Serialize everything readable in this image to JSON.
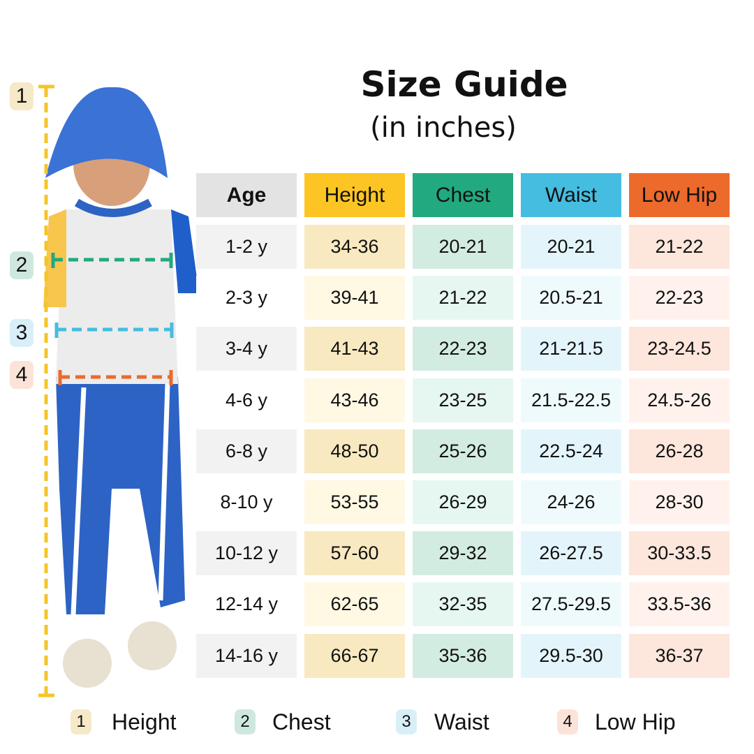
{
  "title": "Size Guide",
  "subtitle": "(in inches)",
  "colors": {
    "age": "#e3e3e3",
    "height": "#fcc523",
    "chest": "#22a97f",
    "waist": "#45bde0",
    "low_hip": "#ec6a2c"
  },
  "table": {
    "headers": [
      "Age",
      "Height",
      "Chest",
      "Waist",
      "Low Hip"
    ],
    "rows": [
      [
        "1-2 y",
        "34-36",
        "20-21",
        "20-21",
        "21-22"
      ],
      [
        "2-3 y",
        "39-41",
        "21-22",
        "20.5-21",
        "22-23"
      ],
      [
        "3-4 y",
        "41-43",
        "22-23",
        "21-21.5",
        "23-24.5"
      ],
      [
        "4-6 y",
        "43-46",
        "23-25",
        "21.5-22.5",
        "24.5-26"
      ],
      [
        "6-8 y",
        "48-50",
        "25-26",
        "22.5-24",
        "26-28"
      ],
      [
        "8-10 y",
        "53-55",
        "26-29",
        "24-26",
        "28-30"
      ],
      [
        "10-12 y",
        "57-60",
        "29-32",
        "26-27.5",
        "30-33.5"
      ],
      [
        "12-14 y",
        "62-65",
        "32-35",
        "27.5-29.5",
        "33.5-36"
      ],
      [
        "14-16 y",
        "66-67",
        "35-36",
        "29.5-30",
        "36-37"
      ]
    ]
  },
  "markers": [
    "1",
    "2",
    "3",
    "4"
  ],
  "legend": [
    {
      "num": "1",
      "label": "Height"
    },
    {
      "num": "2",
      "label": "Chest"
    },
    {
      "num": "3",
      "label": "Waist"
    },
    {
      "num": "4",
      "label": "Low Hip"
    }
  ]
}
